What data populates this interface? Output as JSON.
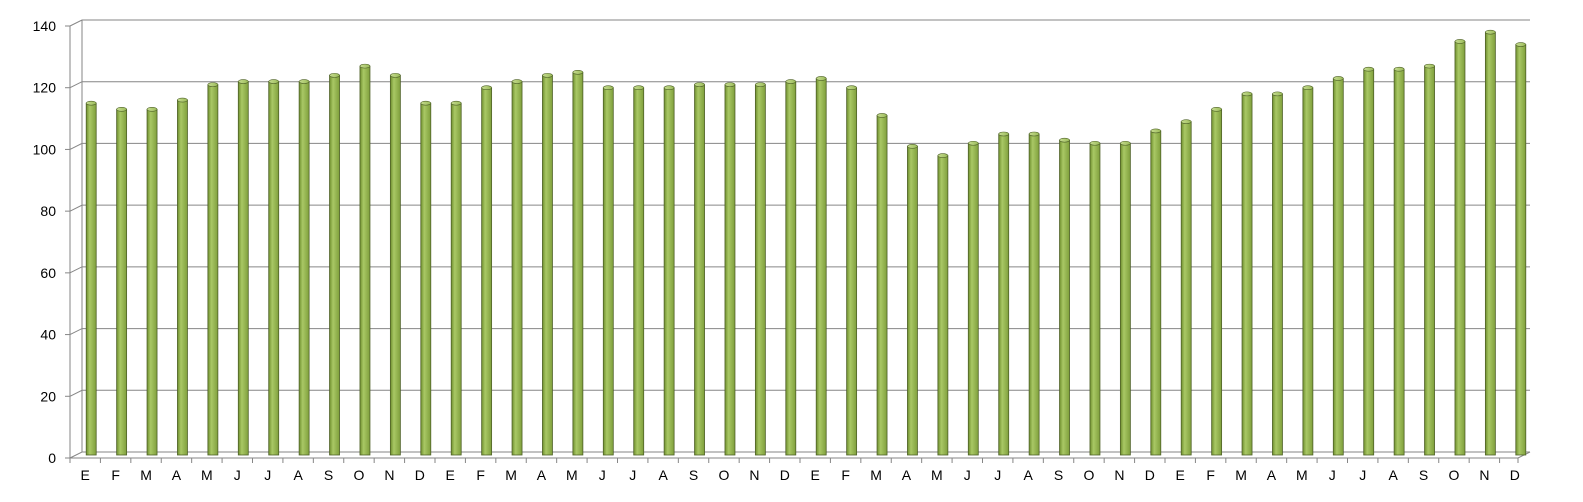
{
  "chart_data": {
    "type": "bar",
    "title": "",
    "xlabel": "",
    "ylabel": "",
    "ylim": [
      0,
      140
    ],
    "yticks": [
      0,
      20,
      40,
      60,
      80,
      100,
      120,
      140
    ],
    "grid": true,
    "legend": "none",
    "categories": [
      "E",
      "F",
      "M",
      "A",
      "M",
      "J",
      "J",
      "A",
      "S",
      "O",
      "N",
      "D",
      "E",
      "F",
      "M",
      "A",
      "M",
      "J",
      "J",
      "A",
      "S",
      "O",
      "N",
      "D",
      "E",
      "F",
      "M",
      "A",
      "M",
      "J",
      "J",
      "A",
      "S",
      "O",
      "N",
      "D",
      "E",
      "F",
      "M",
      "A",
      "M",
      "J",
      "J",
      "A",
      "S",
      "O",
      "N",
      "D"
    ],
    "series": [
      {
        "values": [
          115,
          113,
          113,
          116,
          121,
          122,
          122,
          122,
          124,
          127,
          124,
          115,
          115,
          120,
          122,
          124,
          125,
          120,
          120,
          120,
          121,
          121,
          121,
          122,
          123,
          120,
          111,
          101,
          98,
          102,
          105,
          105,
          103,
          102,
          102,
          106,
          109,
          113,
          118,
          118,
          120,
          123,
          126,
          126,
          127,
          135,
          138,
          134
        ]
      }
    ],
    "colors": {
      "bar_fill": "#9bbb59",
      "bar_stroke": "#4f6228",
      "grid": "#868686",
      "axis": "#868686"
    }
  }
}
